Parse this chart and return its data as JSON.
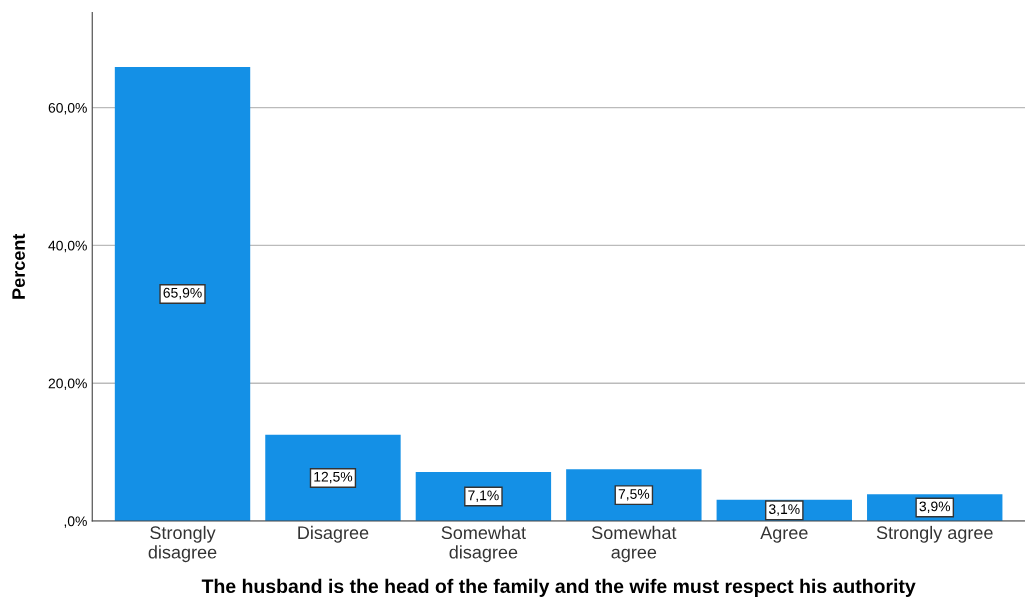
{
  "chart_data": {
    "type": "bar",
    "xlabel": "The husband is the head of the family and the wife must respect his authority",
    "ylabel": "Percent",
    "categories": [
      "Strongly\ndisagree",
      "Disagree",
      "Somewhat\ndisagree",
      "Somewhat\nagree",
      "Agree",
      "Strongly agree"
    ],
    "values": [
      65.9,
      12.5,
      7.1,
      7.5,
      3.1,
      3.9
    ],
    "value_labels": [
      "65,9%",
      "12,5%",
      "7,1%",
      "7,5%",
      "3,1%",
      "3,9%"
    ],
    "color": "#1490e6",
    "ylim": [
      0,
      73.8
    ],
    "yticks": [
      {
        "value": 0,
        "label": ",0%"
      },
      {
        "value": 20,
        "label": "20,0%"
      },
      {
        "value": 40,
        "label": "40,0%"
      },
      {
        "value": 60,
        "label": "60,0%"
      }
    ],
    "grid": "y"
  }
}
